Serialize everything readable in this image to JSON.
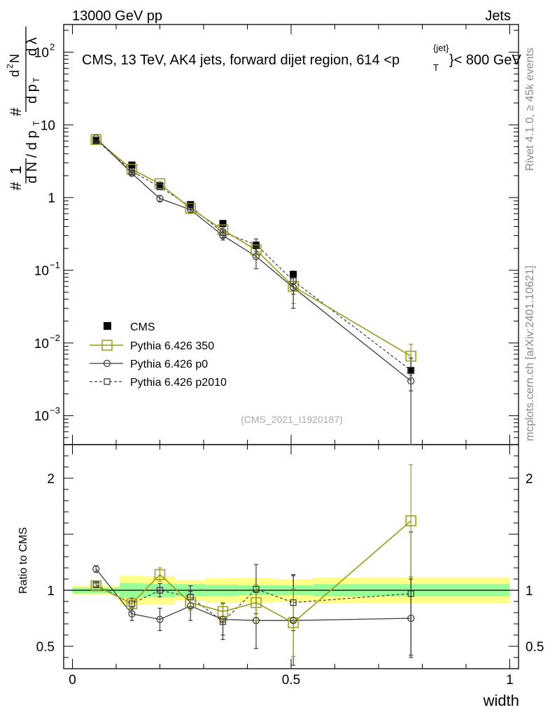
{
  "header": {
    "left": "13000 GeV pp",
    "right": "Jets",
    "title_main": "CMS, 13 TeV, AK4 jets, forward dijet region, 614 <p",
    "title_sup": "{jet}",
    "title_sub": "T",
    "title_end": "}< 800 GeV"
  },
  "side": {
    "rivet": "Rivet 4.1.0, ≥ 45k events",
    "mcplots": "mcplots.cern.ch [arXiv:2401.10621]"
  },
  "watermark": "(CMS_2021_I1920187)",
  "chart_data": {
    "type": "line",
    "title": "CMS, 13 TeV, AK4 jets, forward dijet region, 614 <p_T^{jet}< 800 GeV",
    "xlabel": "width",
    "ylabel": "1/dN/dp_T dN^2/dp_T dλ",
    "ratio_ylabel": "Ratio to CMS",
    "xlim": [
      -0.02,
      1.02
    ],
    "ylim": [
      0.0004,
      240
    ],
    "ratio_ylim": [
      0.3,
      2.3
    ],
    "x_ticks": [
      {
        "v": 0,
        "label": "0"
      },
      {
        "v": 0.5,
        "label": "0.5"
      },
      {
        "v": 1,
        "label": "1"
      }
    ],
    "y_ticks": [
      {
        "v": 100,
        "base": "10",
        "exp": "2"
      },
      {
        "v": 10,
        "base": "10",
        "exp": ""
      },
      {
        "v": 1,
        "base": "1",
        "exp": ""
      },
      {
        "v": 0.1,
        "base": "10",
        "exp": "−1"
      },
      {
        "v": 0.01,
        "base": "10",
        "exp": "−2"
      },
      {
        "v": 0.001,
        "base": "10",
        "exp": "−3"
      }
    ],
    "ratio_ticks": [
      {
        "v": 0.5,
        "label": "0.5"
      },
      {
        "v": 1,
        "label": "1"
      },
      {
        "v": 2,
        "label": "2"
      }
    ],
    "x": [
      0.054,
      0.136,
      0.2,
      0.27,
      0.344,
      0.42,
      0.505,
      0.774
    ],
    "x_bins": [
      [
        0,
        0.108
      ],
      [
        0.108,
        0.165
      ],
      [
        0.165,
        0.235
      ],
      [
        0.235,
        0.305
      ],
      [
        0.305,
        0.38
      ],
      [
        0.38,
        0.46
      ],
      [
        0.46,
        0.55
      ],
      [
        0.55,
        1.0
      ]
    ],
    "band_inner": [
      0.025,
      0.065,
      0.06,
      0.055,
      0.05,
      0.045,
      0.045,
      0.055
    ],
    "band_outer": [
      0.04,
      0.13,
      0.125,
      0.09,
      0.11,
      0.11,
      0.1,
      0.115
    ],
    "series": [
      {
        "name": "CMS",
        "values": [
          6.1,
          2.8,
          1.45,
          0.8,
          0.44,
          0.22,
          0.088,
          0.0042
        ],
        "ratio": [
          1,
          1,
          1,
          1,
          1,
          1,
          1,
          1
        ],
        "ratio_err": []
      },
      {
        "name": "Pythia 6.426 350",
        "values": [
          6.3,
          2.45,
          1.55,
          0.71,
          0.36,
          0.19,
          0.06,
          0.0066
        ],
        "err": [
          0.25,
          0.1,
          0.12,
          0.06,
          0.05,
          0.04,
          0.025,
          0.003
        ],
        "ratio": [
          1.04,
          0.88,
          1.14,
          0.89,
          0.81,
          0.89,
          0.71,
          1.62
        ],
        "ratio_err": [
          0.02,
          0.04,
          0.06,
          0.07,
          0.08,
          0.16,
          0.3,
          0.5
        ]
      },
      {
        "name": "Pythia 6.426 p0",
        "values": [
          6.6,
          2.15,
          0.97,
          0.68,
          0.3,
          0.155,
          0.058,
          0.003
        ],
        "err": [
          0.2,
          0.12,
          0.1,
          0.06,
          0.04,
          0.05,
          0.028,
          0.0032
        ],
        "ratio": [
          1.19,
          0.79,
          0.74,
          0.86,
          0.74,
          0.73,
          0.73,
          0.75
        ],
        "ratio_err": [
          0.03,
          0.06,
          0.1,
          0.13,
          0.14,
          0.25,
          0.4,
          0.35
        ]
      },
      {
        "name": "Pythia 6.426 p2010",
        "values": [
          6.2,
          2.3,
          1.4,
          0.75,
          0.33,
          0.225,
          0.072,
          0.0042
        ],
        "err": [
          0.2,
          0.1,
          0.1,
          0.06,
          0.05,
          0.045,
          0.025,
          0.002
        ],
        "ratio": [
          1.05,
          0.88,
          1.0,
          0.94,
          0.72,
          1.01,
          0.89,
          0.97
        ],
        "ratio_err": [
          0.02,
          0.05,
          0.06,
          0.1,
          0.16,
          0.22,
          0.25,
          0.55
        ]
      }
    ],
    "legend": [
      {
        "name": "CMS"
      },
      {
        "name": "Pythia 6.426 350"
      },
      {
        "name": "Pythia 6.426 p0"
      },
      {
        "name": "Pythia 6.426 p2010"
      }
    ],
    "colors": {
      "cms": "#000000",
      "p350": "#9a9a1a",
      "p0": "#3c3c3c",
      "p2010": "#3c3c3c",
      "band_inner": "#99ff99",
      "band_outer": "#ffff88"
    }
  }
}
